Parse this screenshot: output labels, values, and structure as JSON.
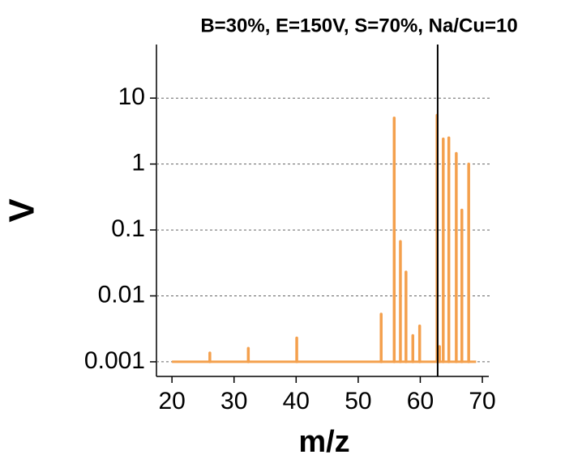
{
  "chart_data": {
    "type": "stem",
    "title": "B=30%, E=150V, S=70%, Na/Cu=10",
    "xlabel": "m/z",
    "ylabel": "V",
    "series": [
      {
        "color": "#f4a04d",
        "x": [
          26.1,
          32.3,
          40.1,
          53.7,
          55.8,
          56.8,
          57.7,
          58.8,
          59.9,
          62.7,
          63.1,
          63.7,
          64.6,
          65.8,
          66.7,
          67.8
        ],
        "values": [
          0.00136,
          0.0016,
          0.0023,
          0.0053,
          5.0,
          0.067,
          0.023,
          0.0025,
          0.0035,
          5.5,
          0.0017,
          2.4,
          2.5,
          1.45,
          0.2,
          1.0
        ]
      }
    ],
    "baseline": 0.001,
    "baseline_x": [
      20,
      69
    ],
    "vline": 62.8,
    "vline_color": "#000000",
    "xlim": [
      17.5,
      71.04
    ],
    "xticks": [
      20,
      30,
      40,
      50,
      60,
      70
    ],
    "ylim": [
      0.0006,
      65
    ],
    "yticks": [
      0.001,
      0.01,
      0.1,
      1,
      10
    ],
    "ylog": true,
    "grid": true
  }
}
